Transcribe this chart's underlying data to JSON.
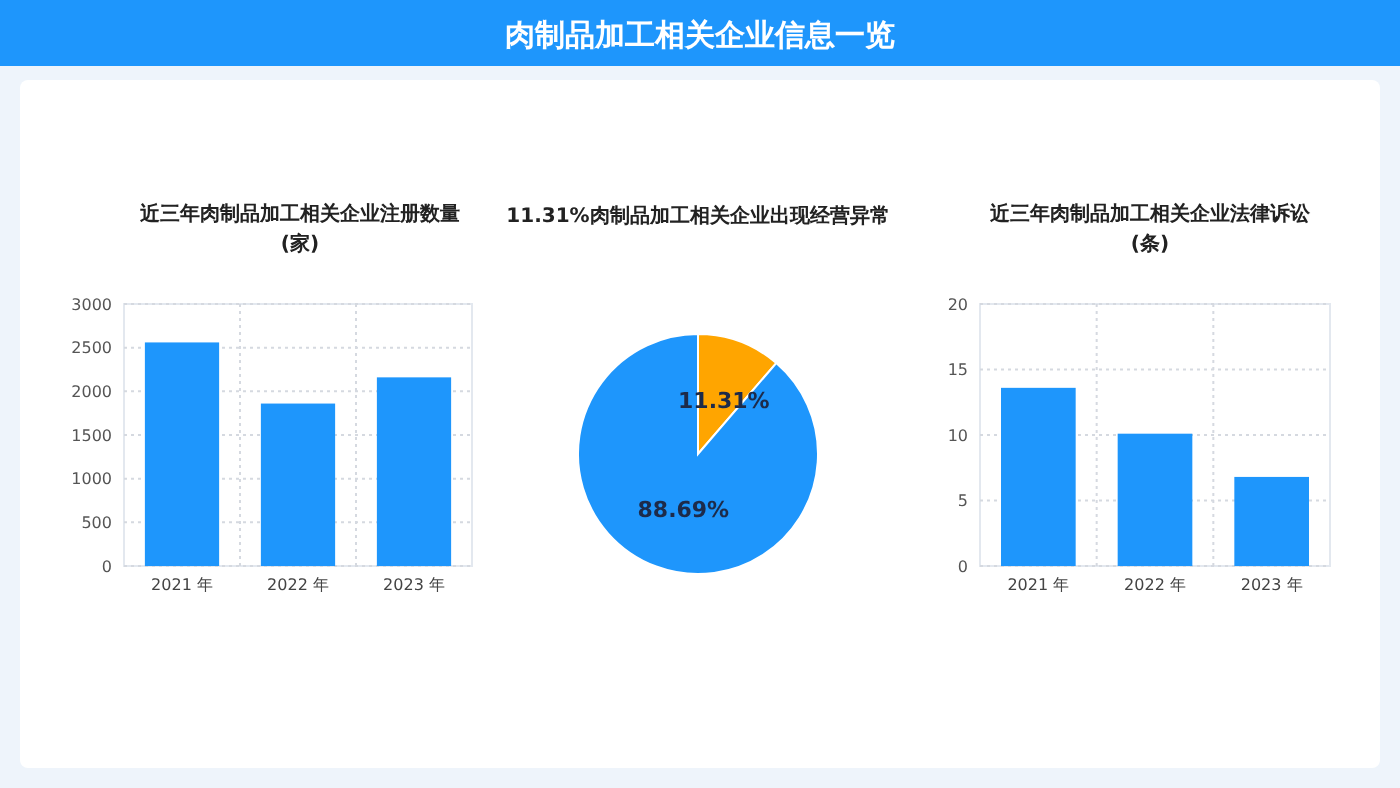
{
  "chart_data": [
    {
      "type": "other",
      "title": "肉制品加工相关企业信息一览"
    },
    {
      "type": "bar",
      "title": "近三年肉制品加工相关企业注册数量\n(家)",
      "categories": [
        "2021 年",
        "2022 年",
        "2023 年"
      ],
      "values": [
        2560,
        1860,
        2160
      ],
      "color": "#1e96fc",
      "ylim": [
        0,
        3000
      ],
      "yticks": [
        0,
        500,
        1000,
        1500,
        2000,
        2500,
        3000
      ],
      "grid": true
    },
    {
      "type": "pie",
      "title": "11.31%肉制品加工相关企业出现经营异常",
      "categories": [
        null,
        null
      ],
      "values": [
        11.31,
        88.69
      ],
      "colors": [
        "#ffa500",
        "#1e96fc"
      ],
      "value_labels": [
        "11.31%",
        "88.69%"
      ]
    },
    {
      "type": "bar",
      "title": "近三年肉制品加工相关企业法律诉讼\n(条)",
      "categories": [
        "2021 年",
        "2022 年",
        "2023 年"
      ],
      "values": [
        13.6,
        10.1,
        6.8
      ],
      "color": "#1e96fc",
      "ylim": [
        0,
        20
      ],
      "yticks": [
        0,
        5,
        10,
        15,
        20
      ],
      "grid": true
    }
  ]
}
